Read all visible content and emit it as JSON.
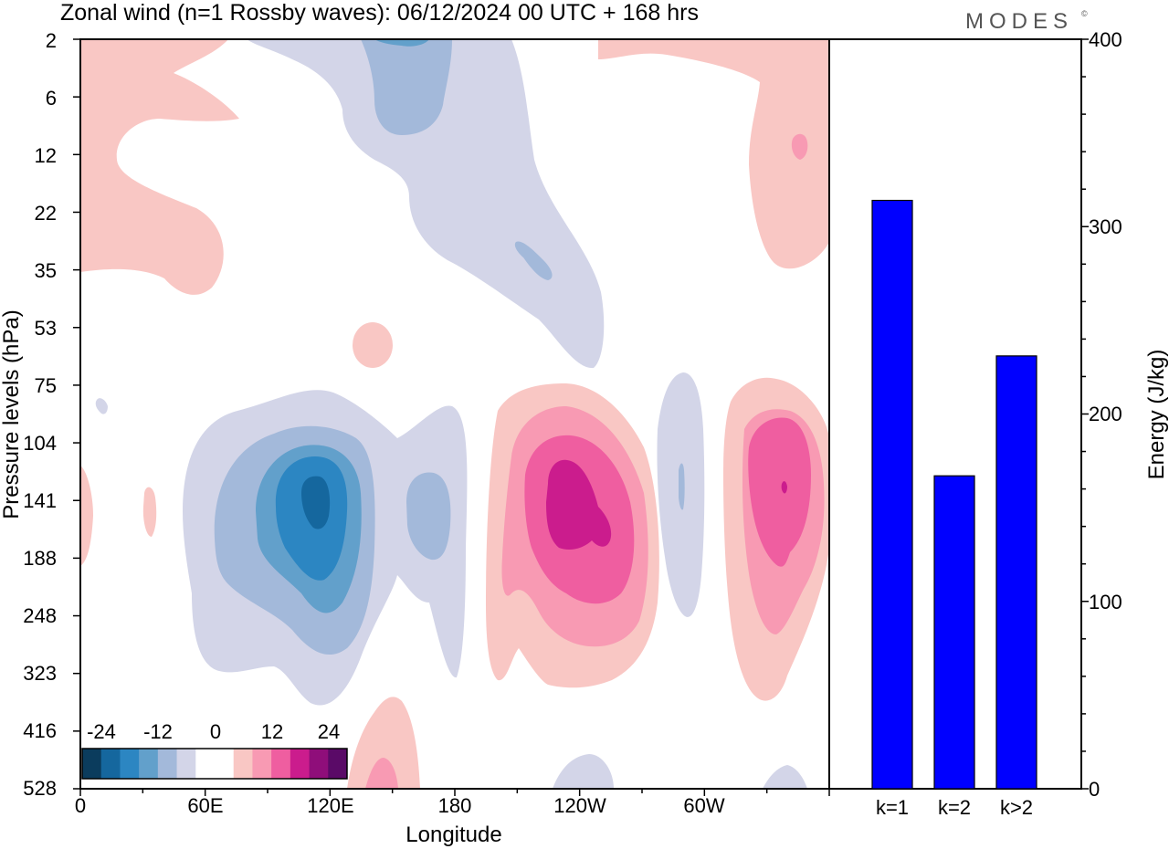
{
  "title": "Zonal wind (n=1 Rossby waves):  06/12/2024  00 UTC  + 168 hrs",
  "logo": "MODES",
  "logo_mark": "©",
  "chart_data": [
    {
      "type": "heatmap",
      "title": "Zonal wind (n=1 Rossby waves):  06/12/2024  00 UTC  + 168 hrs",
      "xlabel": "Longitude",
      "ylabel": "Pressure levels (hPa)",
      "x_ticks": [
        "0",
        "60E",
        "120E",
        "180",
        "120W",
        "60W"
      ],
      "y_ticks": [
        "2",
        "6",
        "12",
        "22",
        "35",
        "53",
        "75",
        "104",
        "141",
        "188",
        "248",
        "323",
        "416",
        "528"
      ],
      "colorbar": {
        "labels": [
          "-24",
          "-12",
          "0",
          "12",
          "24"
        ],
        "colors": [
          "#0b3c5d",
          "#15679e",
          "#2c86c2",
          "#62a0cb",
          "#a3b9da",
          "#d3d5e8",
          "#ffffff",
          "#ffffff",
          "#f9c7c4",
          "#f89ab3",
          "#ef5ea0",
          "#cb1c8d",
          "#8f0e7a",
          "#5a0a67"
        ]
      },
      "features": [
        {
          "name": "negative-core-120E",
          "sign": "negative",
          "lon": 110,
          "level": "141",
          "peak": -27
        },
        {
          "name": "negative-lobe-165E",
          "sign": "negative",
          "lon": 165,
          "level": "141",
          "peak": -8
        },
        {
          "name": "positive-core-125W",
          "sign": "positive",
          "lon": 235,
          "level": "141",
          "peak": 24
        },
        {
          "name": "positive-core-30W",
          "sign": "positive",
          "lon": 330,
          "level": "141",
          "peak": 20
        },
        {
          "name": "negative-strip-70W",
          "sign": "negative",
          "lon": 290,
          "level": "141",
          "peak": -6
        },
        {
          "name": "negative-upper-tongue",
          "sign": "negative",
          "lon": 160,
          "level": "6",
          "peak": -9
        },
        {
          "name": "positive-upper-west",
          "sign": "positive",
          "lon": 20,
          "level": "22",
          "peak": 4
        },
        {
          "name": "positive-upper-east",
          "sign": "positive",
          "lon": 345,
          "level": "12",
          "peak": 6
        },
        {
          "name": "positive-lower-145E",
          "sign": "positive",
          "lon": 145,
          "level": "528",
          "peak": 8
        }
      ]
    },
    {
      "type": "bar",
      "categories": [
        "k=1",
        "k=2",
        "k>2"
      ],
      "values": [
        314,
        167,
        231
      ],
      "ylabel": "Energy (J/kg)",
      "ylim": [
        0,
        400
      ],
      "y_ticks": [
        "0",
        "100",
        "200",
        "300",
        "400"
      ],
      "bar_color": "#0000ff"
    }
  ]
}
